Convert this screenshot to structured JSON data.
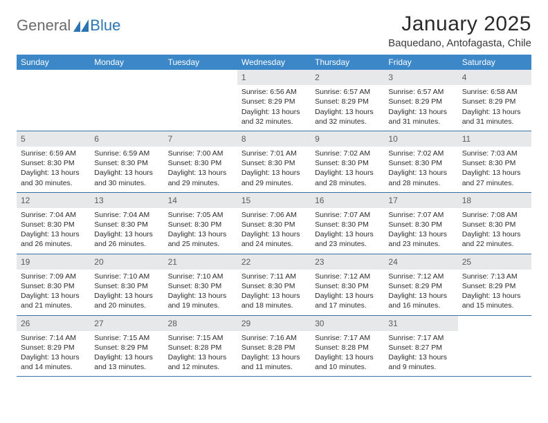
{
  "brand": {
    "text_general": "General",
    "text_blue": "Blue",
    "logo_fill": "#2d74b5"
  },
  "header": {
    "title": "January 2025",
    "subtitle": "Baquedano, Antofagasta, Chile"
  },
  "colors": {
    "header_bg": "#3b87c8",
    "header_fg": "#ffffff",
    "daynum_bg": "#e7e8ea",
    "daynum_fg": "#5a5a5a",
    "row_divider": "#3b6fa0",
    "body_text": "#2b2b2b"
  },
  "typography": {
    "title_fontsize": 30,
    "subtitle_fontsize": 15,
    "th_fontsize": 12,
    "cell_fontsize": 10.5
  },
  "calendar": {
    "weekdays": [
      "Sunday",
      "Monday",
      "Tuesday",
      "Wednesday",
      "Thursday",
      "Friday",
      "Saturday"
    ],
    "weeks": [
      [
        null,
        null,
        null,
        {
          "num": "1",
          "l1": "Sunrise: 6:56 AM",
          "l2": "Sunset: 8:29 PM",
          "l3": "Daylight: 13 hours",
          "l4": "and 32 minutes."
        },
        {
          "num": "2",
          "l1": "Sunrise: 6:57 AM",
          "l2": "Sunset: 8:29 PM",
          "l3": "Daylight: 13 hours",
          "l4": "and 32 minutes."
        },
        {
          "num": "3",
          "l1": "Sunrise: 6:57 AM",
          "l2": "Sunset: 8:29 PM",
          "l3": "Daylight: 13 hours",
          "l4": "and 31 minutes."
        },
        {
          "num": "4",
          "l1": "Sunrise: 6:58 AM",
          "l2": "Sunset: 8:29 PM",
          "l3": "Daylight: 13 hours",
          "l4": "and 31 minutes."
        }
      ],
      [
        {
          "num": "5",
          "l1": "Sunrise: 6:59 AM",
          "l2": "Sunset: 8:30 PM",
          "l3": "Daylight: 13 hours",
          "l4": "and 30 minutes."
        },
        {
          "num": "6",
          "l1": "Sunrise: 6:59 AM",
          "l2": "Sunset: 8:30 PM",
          "l3": "Daylight: 13 hours",
          "l4": "and 30 minutes."
        },
        {
          "num": "7",
          "l1": "Sunrise: 7:00 AM",
          "l2": "Sunset: 8:30 PM",
          "l3": "Daylight: 13 hours",
          "l4": "and 29 minutes."
        },
        {
          "num": "8",
          "l1": "Sunrise: 7:01 AM",
          "l2": "Sunset: 8:30 PM",
          "l3": "Daylight: 13 hours",
          "l4": "and 29 minutes."
        },
        {
          "num": "9",
          "l1": "Sunrise: 7:02 AM",
          "l2": "Sunset: 8:30 PM",
          "l3": "Daylight: 13 hours",
          "l4": "and 28 minutes."
        },
        {
          "num": "10",
          "l1": "Sunrise: 7:02 AM",
          "l2": "Sunset: 8:30 PM",
          "l3": "Daylight: 13 hours",
          "l4": "and 28 minutes."
        },
        {
          "num": "11",
          "l1": "Sunrise: 7:03 AM",
          "l2": "Sunset: 8:30 PM",
          "l3": "Daylight: 13 hours",
          "l4": "and 27 minutes."
        }
      ],
      [
        {
          "num": "12",
          "l1": "Sunrise: 7:04 AM",
          "l2": "Sunset: 8:30 PM",
          "l3": "Daylight: 13 hours",
          "l4": "and 26 minutes."
        },
        {
          "num": "13",
          "l1": "Sunrise: 7:04 AM",
          "l2": "Sunset: 8:30 PM",
          "l3": "Daylight: 13 hours",
          "l4": "and 26 minutes."
        },
        {
          "num": "14",
          "l1": "Sunrise: 7:05 AM",
          "l2": "Sunset: 8:30 PM",
          "l3": "Daylight: 13 hours",
          "l4": "and 25 minutes."
        },
        {
          "num": "15",
          "l1": "Sunrise: 7:06 AM",
          "l2": "Sunset: 8:30 PM",
          "l3": "Daylight: 13 hours",
          "l4": "and 24 minutes."
        },
        {
          "num": "16",
          "l1": "Sunrise: 7:07 AM",
          "l2": "Sunset: 8:30 PM",
          "l3": "Daylight: 13 hours",
          "l4": "and 23 minutes."
        },
        {
          "num": "17",
          "l1": "Sunrise: 7:07 AM",
          "l2": "Sunset: 8:30 PM",
          "l3": "Daylight: 13 hours",
          "l4": "and 23 minutes."
        },
        {
          "num": "18",
          "l1": "Sunrise: 7:08 AM",
          "l2": "Sunset: 8:30 PM",
          "l3": "Daylight: 13 hours",
          "l4": "and 22 minutes."
        }
      ],
      [
        {
          "num": "19",
          "l1": "Sunrise: 7:09 AM",
          "l2": "Sunset: 8:30 PM",
          "l3": "Daylight: 13 hours",
          "l4": "and 21 minutes."
        },
        {
          "num": "20",
          "l1": "Sunrise: 7:10 AM",
          "l2": "Sunset: 8:30 PM",
          "l3": "Daylight: 13 hours",
          "l4": "and 20 minutes."
        },
        {
          "num": "21",
          "l1": "Sunrise: 7:10 AM",
          "l2": "Sunset: 8:30 PM",
          "l3": "Daylight: 13 hours",
          "l4": "and 19 minutes."
        },
        {
          "num": "22",
          "l1": "Sunrise: 7:11 AM",
          "l2": "Sunset: 8:30 PM",
          "l3": "Daylight: 13 hours",
          "l4": "and 18 minutes."
        },
        {
          "num": "23",
          "l1": "Sunrise: 7:12 AM",
          "l2": "Sunset: 8:30 PM",
          "l3": "Daylight: 13 hours",
          "l4": "and 17 minutes."
        },
        {
          "num": "24",
          "l1": "Sunrise: 7:12 AM",
          "l2": "Sunset: 8:29 PM",
          "l3": "Daylight: 13 hours",
          "l4": "and 16 minutes."
        },
        {
          "num": "25",
          "l1": "Sunrise: 7:13 AM",
          "l2": "Sunset: 8:29 PM",
          "l3": "Daylight: 13 hours",
          "l4": "and 15 minutes."
        }
      ],
      [
        {
          "num": "26",
          "l1": "Sunrise: 7:14 AM",
          "l2": "Sunset: 8:29 PM",
          "l3": "Daylight: 13 hours",
          "l4": "and 14 minutes."
        },
        {
          "num": "27",
          "l1": "Sunrise: 7:15 AM",
          "l2": "Sunset: 8:29 PM",
          "l3": "Daylight: 13 hours",
          "l4": "and 13 minutes."
        },
        {
          "num": "28",
          "l1": "Sunrise: 7:15 AM",
          "l2": "Sunset: 8:28 PM",
          "l3": "Daylight: 13 hours",
          "l4": "and 12 minutes."
        },
        {
          "num": "29",
          "l1": "Sunrise: 7:16 AM",
          "l2": "Sunset: 8:28 PM",
          "l3": "Daylight: 13 hours",
          "l4": "and 11 minutes."
        },
        {
          "num": "30",
          "l1": "Sunrise: 7:17 AM",
          "l2": "Sunset: 8:28 PM",
          "l3": "Daylight: 13 hours",
          "l4": "and 10 minutes."
        },
        {
          "num": "31",
          "l1": "Sunrise: 7:17 AM",
          "l2": "Sunset: 8:27 PM",
          "l3": "Daylight: 13 hours",
          "l4": "and 9 minutes."
        },
        null
      ]
    ]
  }
}
